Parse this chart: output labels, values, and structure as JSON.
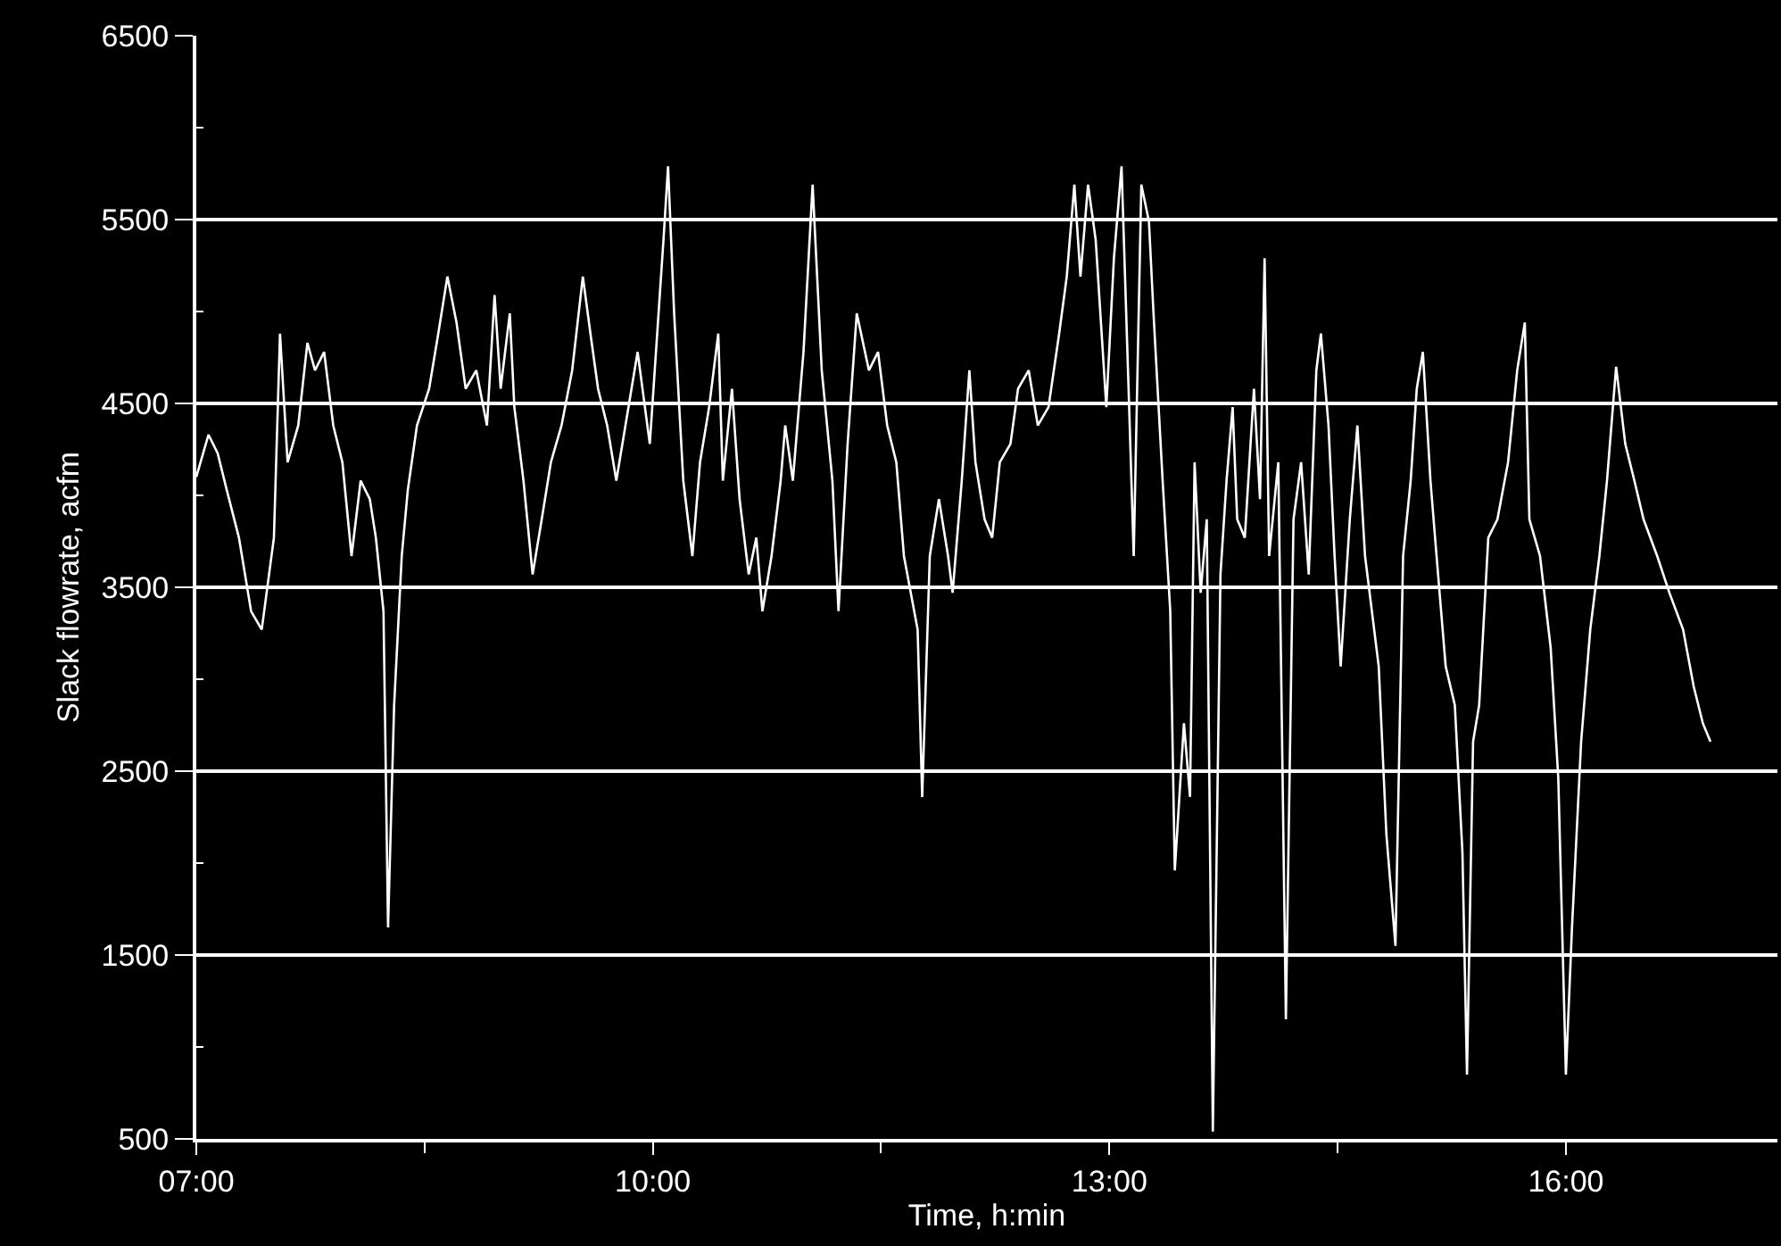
{
  "chart_data": {
    "type": "line",
    "xlabel": "Time, h:min",
    "ylabel": "Slack flowrate, acfm",
    "xlim": [
      7,
      17.39
    ],
    "xticks": [
      {
        "value": 7,
        "label": "07:00"
      },
      {
        "value": 8.5,
        "label": null
      },
      {
        "value": 10,
        "label": "10:00"
      },
      {
        "value": 11.5,
        "label": null
      },
      {
        "value": 13,
        "label": "13:00"
      },
      {
        "value": 14.5,
        "label": null
      },
      {
        "value": 16,
        "label": "16:00"
      }
    ],
    "ylim": [
      500,
      6500
    ],
    "yticks": [
      500,
      {
        "value": 1000,
        "label": null
      },
      1500,
      {
        "value": 2000,
        "label": null
      },
      2500,
      {
        "value": 3000,
        "label": null
      },
      3500,
      {
        "value": 4000,
        "label": null
      },
      4500,
      {
        "value": 5000,
        "label": null
      },
      5500,
      {
        "value": 6000,
        "label": null
      },
      6500
    ],
    "grid": "y",
    "marker": "none",
    "line_style": "solid",
    "series": [
      {
        "color": "#ffffff",
        "x": [
          7.0,
          7.08,
          7.14,
          7.2,
          7.28,
          7.36,
          7.43,
          7.51,
          7.55,
          7.6,
          7.67,
          7.73,
          7.78,
          7.84,
          7.9,
          7.96,
          8.02,
          8.08,
          8.14,
          8.18,
          8.23,
          8.26,
          8.3,
          8.35,
          8.39,
          8.45,
          8.53,
          8.59,
          8.65,
          8.71,
          8.77,
          8.84,
          8.91,
          8.96,
          9.0,
          9.06,
          9.09,
          9.15,
          9.21,
          9.27,
          9.33,
          9.4,
          9.47,
          9.54,
          9.59,
          9.64,
          9.7,
          9.76,
          9.82,
          9.9,
          9.98,
          10.07,
          10.1,
          10.14,
          10.2,
          10.26,
          10.31,
          10.37,
          10.43,
          10.46,
          10.52,
          10.57,
          10.63,
          10.68,
          10.72,
          10.78,
          10.84,
          10.87,
          10.92,
          10.99,
          11.05,
          11.11,
          11.18,
          11.22,
          11.28,
          11.34,
          11.42,
          11.48,
          11.54,
          11.6,
          11.65,
          11.74,
          11.77,
          11.82,
          11.88,
          11.94,
          11.97,
          12.03,
          12.08,
          12.12,
          12.18,
          12.23,
          12.28,
          12.35,
          12.4,
          12.47,
          12.53,
          12.6,
          12.67,
          12.72,
          12.77,
          12.81,
          12.86,
          12.91,
          12.98,
          13.03,
          13.08,
          13.13,
          13.16,
          13.21,
          13.26,
          13.29,
          13.35,
          13.4,
          13.43,
          13.46,
          13.49,
          13.53,
          13.56,
          13.6,
          13.64,
          13.68,
          13.73,
          13.77,
          13.81,
          13.84,
          13.89,
          13.95,
          13.99,
          14.02,
          14.05,
          14.11,
          14.16,
          14.21,
          14.26,
          14.31,
          14.36,
          14.39,
          14.44,
          14.48,
          14.52,
          14.58,
          14.63,
          14.68,
          14.77,
          14.82,
          14.88,
          14.93,
          14.98,
          15.02,
          15.06,
          15.11,
          15.15,
          15.21,
          15.27,
          15.32,
          15.35,
          15.39,
          15.43,
          15.49,
          15.55,
          15.62,
          15.68,
          15.73,
          15.76,
          15.83,
          15.9,
          15.95,
          16.0,
          16.04,
          16.1,
          16.16,
          16.22,
          16.27,
          16.33,
          16.39,
          16.45,
          16.51,
          16.6,
          16.68,
          16.77,
          16.84,
          16.9,
          16.95
        ],
        "values": [
          4100,
          4330,
          4230,
          4030,
          3770,
          3370,
          3270,
          3770,
          4880,
          4180,
          4380,
          4830,
          4680,
          4780,
          4380,
          4180,
          3670,
          4080,
          3980,
          3770,
          3370,
          1650,
          2860,
          3670,
          4030,
          4380,
          4580,
          4880,
          5190,
          4940,
          4580,
          4680,
          4380,
          5090,
          4580,
          4990,
          4480,
          4080,
          3570,
          3870,
          4180,
          4380,
          4680,
          5190,
          4880,
          4580,
          4380,
          4080,
          4380,
          4780,
          4280,
          5390,
          5790,
          4990,
          4080,
          3670,
          4180,
          4480,
          4880,
          4080,
          4580,
          3980,
          3570,
          3770,
          3370,
          3670,
          4080,
          4380,
          4080,
          4780,
          5690,
          4680,
          4080,
          3370,
          4280,
          4990,
          4680,
          4780,
          4380,
          4180,
          3670,
          3270,
          2360,
          3670,
          3980,
          3670,
          3470,
          4080,
          4680,
          4180,
          3870,
          3770,
          4180,
          4280,
          4580,
          4680,
          4380,
          4480,
          4880,
          5190,
          5690,
          5190,
          5690,
          5390,
          4480,
          5290,
          5790,
          4480,
          3670,
          5690,
          5490,
          4990,
          4080,
          3370,
          1960,
          2360,
          2760,
          2360,
          4180,
          3470,
          3870,
          540,
          3570,
          4080,
          4480,
          3870,
          3770,
          4580,
          3980,
          5290,
          3670,
          4180,
          1150,
          3870,
          4180,
          3570,
          4680,
          4880,
          4380,
          3670,
          3070,
          3870,
          4380,
          3670,
          3070,
          2160,
          1550,
          3670,
          4080,
          4580,
          4780,
          4080,
          3670,
          3070,
          2860,
          2060,
          850,
          2660,
          2860,
          3770,
          3870,
          4180,
          4680,
          4940,
          3870,
          3670,
          3170,
          2460,
          850,
          1650,
          2660,
          3270,
          3670,
          4080,
          4700,
          4280,
          4080,
          3870,
          3670,
          3470,
          3270,
          2960,
          2760,
          2660
        ]
      }
    ]
  }
}
